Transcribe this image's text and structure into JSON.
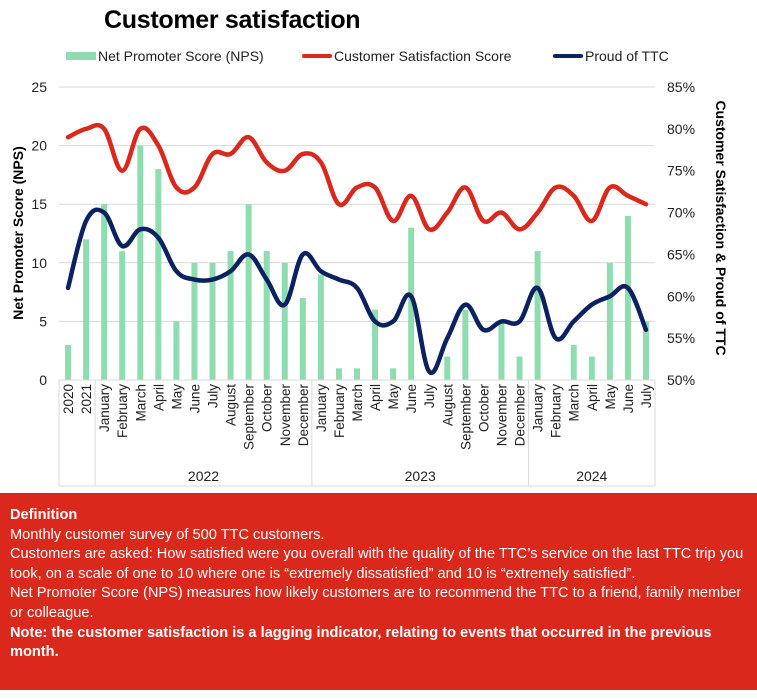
{
  "chart_data": {
    "type": "bar",
    "title": "Customer satisfaction",
    "legend_position": "top",
    "legend": [
      {
        "name": "Net Promoter Score (NPS)",
        "color": "#8fdcb0",
        "kind": "bar"
      },
      {
        "name": "Customer Satisfaction Score",
        "color": "#da291c",
        "kind": "line"
      },
      {
        "name": "Proud of TTC",
        "color": "#0b2261",
        "kind": "line"
      }
    ],
    "ylabel": "Net Promoter Score (NPS)",
    "y2label": "Customer Satisfaction & Proud of TTC",
    "ylim": [
      0,
      25
    ],
    "yticks": [
      "0",
      "5",
      "10",
      "15",
      "20",
      "25"
    ],
    "y2lim": [
      50,
      85
    ],
    "y2ticks": [
      "50%",
      "55%",
      "60%",
      "65%",
      "70%",
      "75%",
      "80%",
      "85%"
    ],
    "grid": true,
    "categories": [
      "2020",
      "2021",
      "January",
      "February",
      "March",
      "April",
      "May",
      "June",
      "July",
      "August",
      "September",
      "October",
      "November",
      "December",
      "January",
      "February",
      "March",
      "April",
      "May",
      "June",
      "July",
      "August",
      "September",
      "October",
      "November",
      "December",
      "January",
      "February",
      "March",
      "April",
      "May",
      "June",
      "July"
    ],
    "groups": [
      {
        "label": "",
        "start": 0,
        "count": 2
      },
      {
        "label": "2022",
        "start": 2,
        "count": 12
      },
      {
        "label": "2023",
        "start": 14,
        "count": 12
      },
      {
        "label": "2024",
        "start": 26,
        "count": 7
      }
    ],
    "series": [
      {
        "name": "Net Promoter Score (NPS)",
        "axis": "left",
        "type": "bar",
        "values": [
          3,
          12,
          15,
          11,
          20,
          18,
          5,
          10,
          10,
          11,
          15,
          11,
          10,
          7,
          9,
          1,
          1,
          6,
          1,
          13,
          0,
          2,
          6,
          0,
          5,
          2,
          11,
          0,
          3,
          2,
          10,
          14,
          5
        ]
      },
      {
        "name": "Customer Satisfaction Score",
        "axis": "right",
        "type": "line",
        "unit": "%",
        "values": [
          79,
          80,
          80,
          75,
          80,
          78,
          73,
          73,
          77,
          77,
          79,
          76,
          75,
          77,
          76,
          71,
          73,
          73,
          69,
          72,
          68,
          70,
          73,
          69,
          70,
          68,
          70,
          73,
          72,
          69,
          73,
          72,
          71
        ]
      },
      {
        "name": "Proud of TTC",
        "axis": "right",
        "type": "line",
        "unit": "%",
        "values": [
          61,
          69,
          70,
          66,
          68,
          67,
          63,
          62,
          62,
          63,
          65,
          62,
          59,
          65,
          63,
          62,
          61,
          57,
          57,
          60,
          51,
          55,
          59,
          56,
          57,
          57,
          61,
          55,
          57,
          59,
          60,
          61,
          56
        ]
      }
    ]
  },
  "definition": {
    "heading": "Definition",
    "lines": [
      "Monthly customer survey of 500 TTC customers.",
      "Customers are asked: How satisfied were you overall with the quality of the TTC’s service on the last TTC trip you took, on a scale of one to 10 where one is “extremely dissatisfied” and 10 is “extremely satisfied”.",
      "Net Promoter Score (NPS) measures how likely customers are to recommend the TTC to a friend, family member or colleague."
    ],
    "note": "Note: the customer satisfaction is a lagging indicator, relating to events that occurred in the previous month."
  }
}
